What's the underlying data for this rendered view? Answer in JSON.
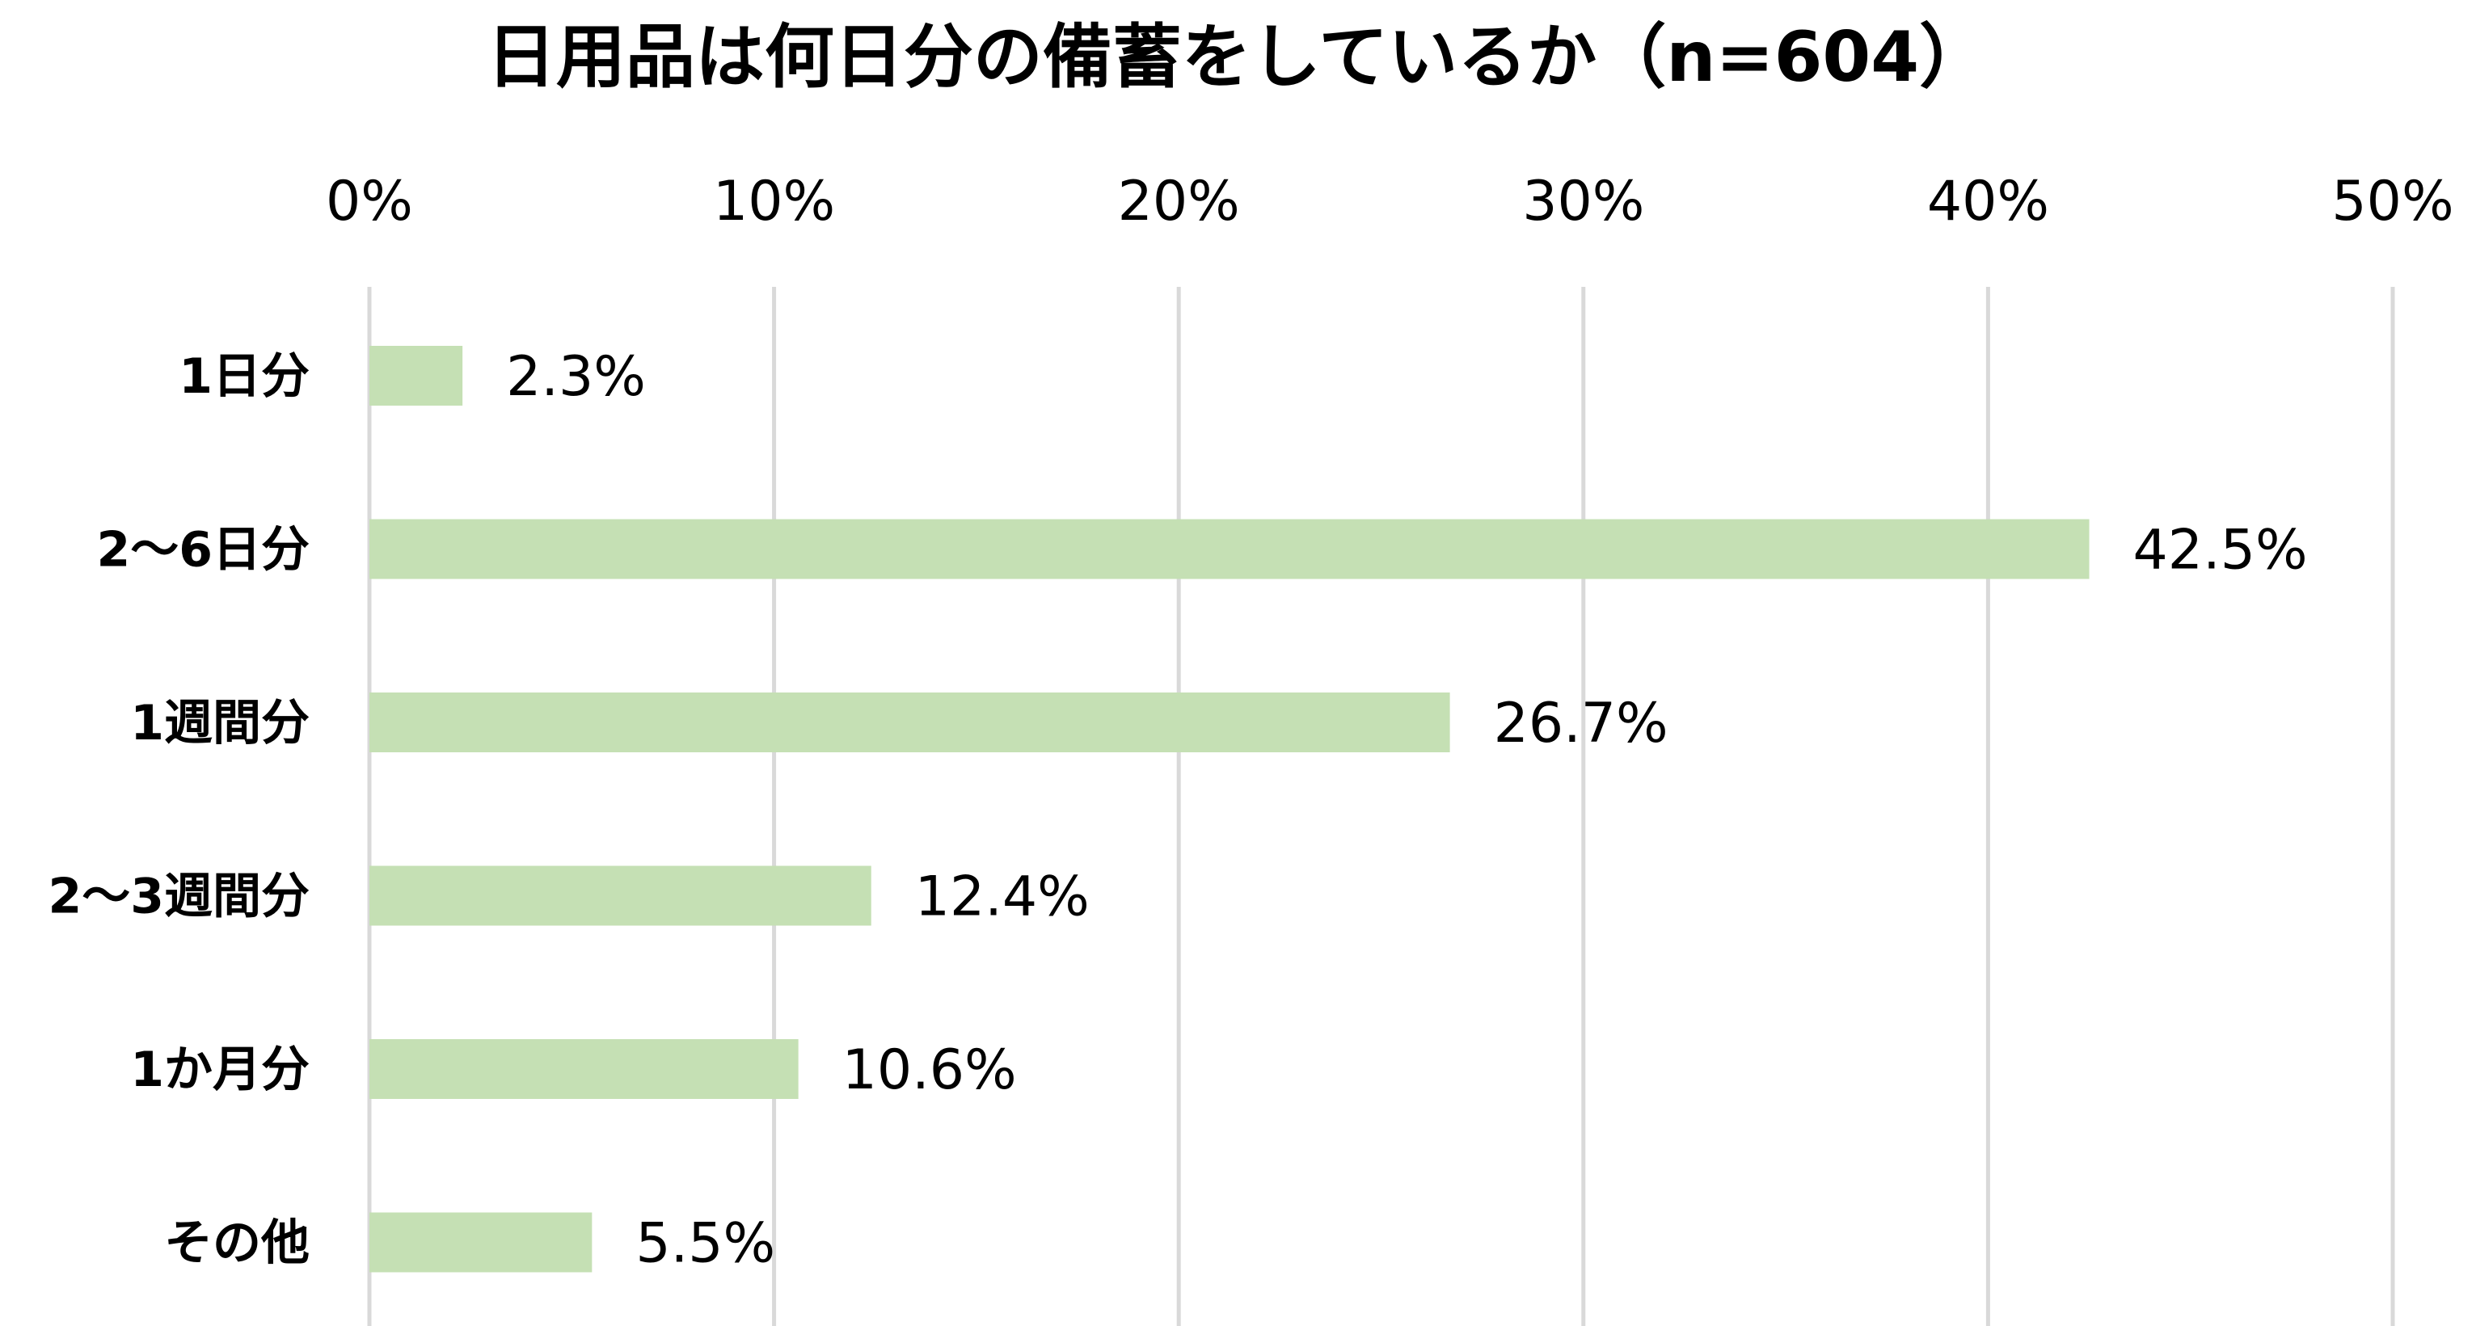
{
  "chart_data": {
    "type": "bar",
    "orientation": "horizontal",
    "title": "日用品は何日分の備蓄をしているか（n=604）",
    "categories": [
      "1日分",
      "2～6日分",
      "1週間分",
      "2～3週間分",
      "1か月分",
      "その他"
    ],
    "values": [
      2.3,
      42.5,
      26.7,
      12.4,
      10.6,
      5.5
    ],
    "value_labels": [
      "2.3%",
      "42.5%",
      "26.7%",
      "12.4%",
      "10.6%",
      "5.5%"
    ],
    "x_ticks": [
      0,
      10,
      20,
      30,
      40,
      50
    ],
    "x_tick_labels": [
      "0%",
      "10%",
      "20%",
      "30%",
      "40%",
      "50%"
    ],
    "xlim": [
      0,
      50
    ],
    "x_axis_position": "top",
    "grid": true,
    "legend": "none",
    "bar_color": "#c5e0b4",
    "grid_color": "#d9d9d9",
    "text_color": "#000000"
  }
}
